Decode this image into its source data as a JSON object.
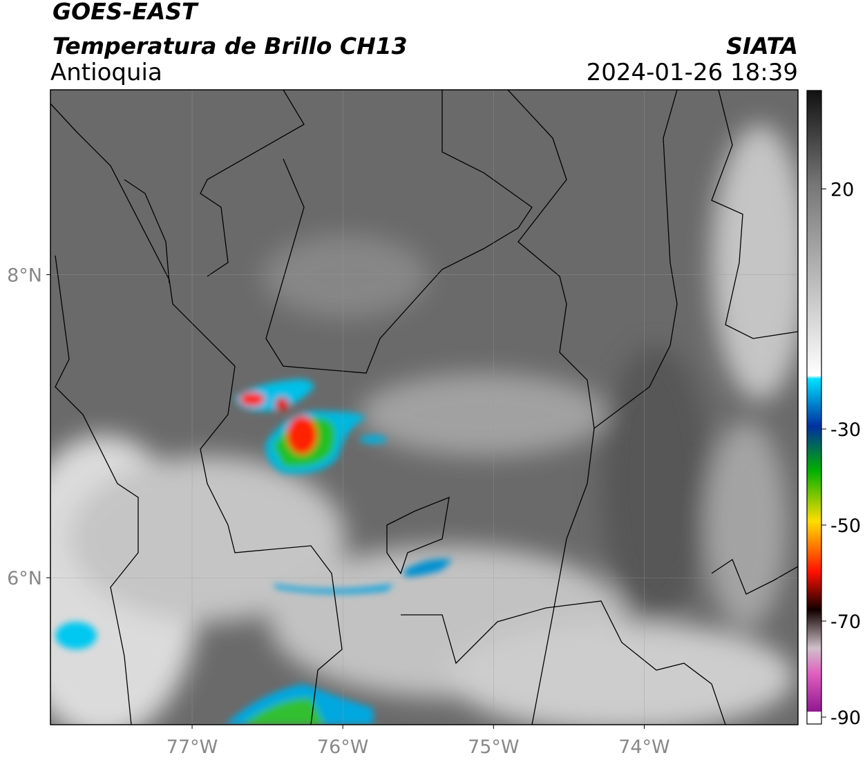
{
  "header": {
    "title": "GOES-EAST",
    "subtitle": "Temperatura de Brillo CH13",
    "region": "Antioquia",
    "source": "SIATA",
    "datetime": "2024-01-26 18:39"
  },
  "map": {
    "xlim": [
      -77.94,
      -72.98
    ],
    "ylim": [
      5.03,
      9.22
    ],
    "xticks": [
      {
        "value": -77,
        "label": "77°W"
      },
      {
        "value": -76,
        "label": "76°W"
      },
      {
        "value": -75,
        "label": "75°W"
      },
      {
        "value": -74,
        "label": "74°W"
      }
    ],
    "yticks": [
      {
        "value": 8,
        "label": "8°N"
      },
      {
        "value": 6,
        "label": "6°N"
      }
    ],
    "grid": true
  },
  "colorbar": {
    "lim": [
      -90,
      40
    ],
    "ticks": [
      20,
      -30,
      -50,
      -70,
      -90
    ]
  }
}
